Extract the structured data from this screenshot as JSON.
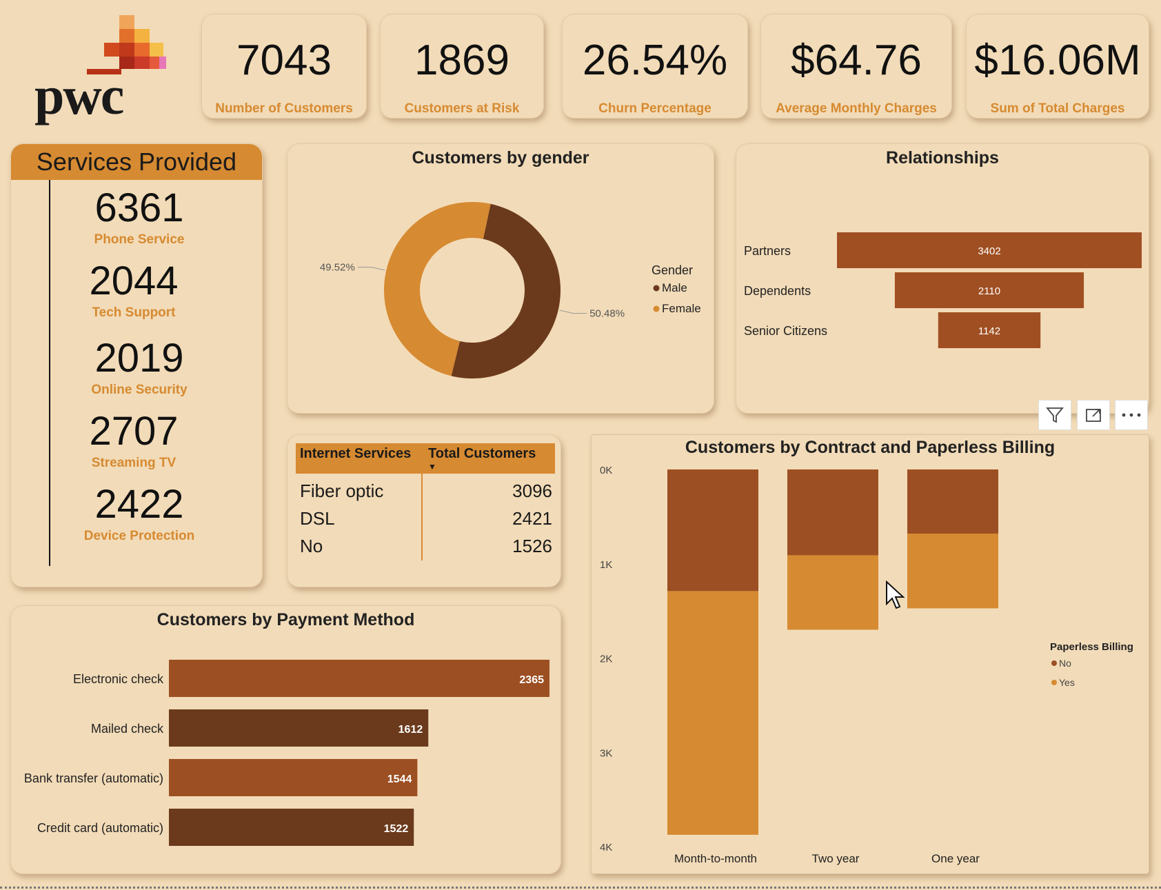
{
  "logo_text": "pwc",
  "kpis": [
    {
      "value": "7043",
      "label": "Number of Customers"
    },
    {
      "value": "1869",
      "label": "Customers at Risk"
    },
    {
      "value": "26.54%",
      "label": "Churn Percentage"
    },
    {
      "value": "$64.76",
      "label": "Average Monthly Charges"
    },
    {
      "value": "$16.06M",
      "label": "Sum of Total Charges"
    }
  ],
  "services": {
    "title": "Services Provided",
    "items": [
      {
        "value": "6361",
        "label": "Phone Service"
      },
      {
        "value": "2044",
        "label": "Tech Support"
      },
      {
        "value": "2019",
        "label": "Online Security"
      },
      {
        "value": "2707",
        "label": "Streaming TV"
      },
      {
        "value": "2422",
        "label": "Device Protection"
      }
    ]
  },
  "internet_table": {
    "headers": [
      "Internet Services",
      "Total Customers"
    ],
    "rows": [
      {
        "service": "Fiber optic",
        "total": "3096"
      },
      {
        "service": "DSL",
        "total": "2421"
      },
      {
        "service": "No",
        "total": "1526"
      }
    ]
  },
  "colors": {
    "background": "#f2dbb8",
    "accent": "#d68a31",
    "dark_brown": "#6b3a1c",
    "rust": "#9c4f22",
    "rel_bar": "#a04f22"
  },
  "chart_data": [
    {
      "id": "gender",
      "type": "pie",
      "title": "Customers by gender",
      "legend_title": "Gender",
      "legend_position": "right",
      "slices": [
        {
          "name": "Male",
          "value": 50.48,
          "label": "50.48%",
          "color": "#6b3a1c"
        },
        {
          "name": "Female",
          "value": 49.52,
          "label": "49.52%",
          "color": "#d68a31"
        }
      ]
    },
    {
      "id": "relationships",
      "type": "bar",
      "title": "Relationships",
      "orientation": "horizontal-funnel",
      "categories": [
        "Partners",
        "Dependents",
        "Senior Citizens"
      ],
      "values": [
        3402,
        2110,
        1142
      ],
      "color": "#a04f22"
    },
    {
      "id": "payment",
      "type": "bar",
      "title": "Customers by Payment Method",
      "orientation": "horizontal",
      "categories": [
        "Electronic check",
        "Mailed check",
        "Bank transfer (automatic)",
        "Credit card (automatic)"
      ],
      "values": [
        2365,
        1612,
        1544,
        1522
      ],
      "colors": [
        "#9c4f22",
        "#6b3a1c",
        "#9c4f22",
        "#6b3a1c"
      ]
    },
    {
      "id": "contract",
      "type": "bar",
      "stacked": true,
      "title": "Customers by Contract and Paperless Billing",
      "categories": [
        "Month-to-month",
        "Two year",
        "One year"
      ],
      "series": [
        {
          "name": "No",
          "values": [
            1290,
            910,
            680
          ],
          "color": "#9c4f22"
        },
        {
          "name": "Yes",
          "values": [
            2585,
            790,
            793
          ],
          "color": "#d68a31"
        }
      ],
      "legend_title": "Paperless Billing",
      "legend_position": "right",
      "y_ticks": [
        "0K",
        "1K",
        "2K",
        "3K",
        "4K"
      ],
      "ylim": [
        0,
        4000
      ],
      "y_axis_reversed": true
    }
  ]
}
